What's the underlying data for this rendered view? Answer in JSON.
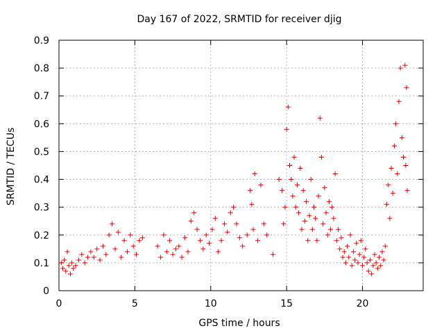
{
  "chart_data": {
    "type": "scatter",
    "title": "Day 167 of 2022, SRMTID for receiver djig",
    "xlabel": "GPS time / hours",
    "ylabel": "SRMTID / TECUs",
    "xlim": [
      0,
      24
    ],
    "ylim": [
      0,
      0.9
    ],
    "xticks": [
      0,
      5,
      10,
      15,
      20
    ],
    "yticks": [
      0,
      0.1,
      0.2,
      0.3,
      0.4,
      0.5,
      0.6,
      0.7,
      0.8,
      0.9
    ],
    "grid": true,
    "color": "#e00000",
    "marker": "+",
    "series": [
      {
        "name": "SRMTID",
        "points": [
          [
            0.15,
            0.1
          ],
          [
            0.25,
            0.08
          ],
          [
            0.35,
            0.11
          ],
          [
            0.45,
            0.07
          ],
          [
            0.55,
            0.14
          ],
          [
            0.65,
            0.09
          ],
          [
            0.75,
            0.06
          ],
          [
            0.85,
            0.1
          ],
          [
            0.95,
            0.08
          ],
          [
            1.1,
            0.09
          ],
          [
            1.3,
            0.11
          ],
          [
            1.5,
            0.13
          ],
          [
            1.7,
            0.1
          ],
          [
            1.9,
            0.12
          ],
          [
            2.1,
            0.14
          ],
          [
            2.3,
            0.12
          ],
          [
            2.5,
            0.15
          ],
          [
            2.7,
            0.11
          ],
          [
            2.9,
            0.16
          ],
          [
            3.1,
            0.13
          ],
          [
            3.3,
            0.2
          ],
          [
            3.5,
            0.24
          ],
          [
            3.7,
            0.15
          ],
          [
            3.9,
            0.21
          ],
          [
            4.1,
            0.12
          ],
          [
            4.3,
            0.18
          ],
          [
            4.5,
            0.14
          ],
          [
            4.7,
            0.2
          ],
          [
            4.9,
            0.16
          ],
          [
            5.1,
            0.13
          ],
          [
            5.3,
            0.18
          ],
          [
            5.5,
            0.19
          ],
          [
            6.5,
            0.16
          ],
          [
            6.7,
            0.12
          ],
          [
            6.9,
            0.2
          ],
          [
            7.1,
            0.14
          ],
          [
            7.3,
            0.18
          ],
          [
            7.5,
            0.13
          ],
          [
            7.7,
            0.15
          ],
          [
            7.9,
            0.16
          ],
          [
            8.1,
            0.12
          ],
          [
            8.3,
            0.19
          ],
          [
            8.5,
            0.14
          ],
          [
            8.7,
            0.25
          ],
          [
            8.9,
            0.28
          ],
          [
            9.1,
            0.22
          ],
          [
            9.3,
            0.18
          ],
          [
            9.5,
            0.15
          ],
          [
            9.7,
            0.2
          ],
          [
            9.9,
            0.17
          ],
          [
            10.1,
            0.22
          ],
          [
            10.3,
            0.26
          ],
          [
            10.5,
            0.14
          ],
          [
            10.7,
            0.18
          ],
          [
            10.9,
            0.24
          ],
          [
            11.1,
            0.21
          ],
          [
            11.3,
            0.28
          ],
          [
            11.5,
            0.3
          ],
          [
            11.7,
            0.24
          ],
          [
            11.9,
            0.19
          ],
          [
            12.1,
            0.16
          ],
          [
            12.4,
            0.2
          ],
          [
            12.6,
            0.36
          ],
          [
            12.7,
            0.31
          ],
          [
            12.8,
            0.22
          ],
          [
            12.9,
            0.42
          ],
          [
            13.1,
            0.18
          ],
          [
            13.3,
            0.38
          ],
          [
            13.5,
            0.24
          ],
          [
            13.7,
            0.2
          ],
          [
            14.1,
            0.13
          ],
          [
            14.5,
            0.4
          ],
          [
            14.7,
            0.36
          ],
          [
            14.8,
            0.24
          ],
          [
            14.9,
            0.3
          ],
          [
            15.0,
            0.58
          ],
          [
            15.1,
            0.66
          ],
          [
            15.2,
            0.45
          ],
          [
            15.3,
            0.4
          ],
          [
            15.4,
            0.34
          ],
          [
            15.5,
            0.48
          ],
          [
            15.6,
            0.3
          ],
          [
            15.7,
            0.38
          ],
          [
            15.8,
            0.28
          ],
          [
            15.9,
            0.44
          ],
          [
            16.0,
            0.22
          ],
          [
            16.1,
            0.36
          ],
          [
            16.2,
            0.25
          ],
          [
            16.3,
            0.32
          ],
          [
            16.4,
            0.18
          ],
          [
            16.5,
            0.27
          ],
          [
            16.6,
            0.4
          ],
          [
            16.7,
            0.22
          ],
          [
            16.8,
            0.3
          ],
          [
            16.9,
            0.26
          ],
          [
            17.0,
            0.18
          ],
          [
            17.1,
            0.34
          ],
          [
            17.2,
            0.62
          ],
          [
            17.3,
            0.48
          ],
          [
            17.4,
            0.24
          ],
          [
            17.5,
            0.37
          ],
          [
            17.6,
            0.28
          ],
          [
            17.7,
            0.2
          ],
          [
            17.8,
            0.32
          ],
          [
            17.9,
            0.22
          ],
          [
            18.0,
            0.3
          ],
          [
            18.1,
            0.26
          ],
          [
            18.2,
            0.42
          ],
          [
            18.3,
            0.18
          ],
          [
            18.4,
            0.22
          ],
          [
            18.5,
            0.15
          ],
          [
            18.6,
            0.19
          ],
          [
            18.7,
            0.12
          ],
          [
            18.8,
            0.14
          ],
          [
            18.9,
            0.1
          ],
          [
            19.0,
            0.16
          ],
          [
            19.1,
            0.12
          ],
          [
            19.2,
            0.2
          ],
          [
            19.3,
            0.09
          ],
          [
            19.4,
            0.14
          ],
          [
            19.5,
            0.11
          ],
          [
            19.6,
            0.17
          ],
          [
            19.7,
            0.1
          ],
          [
            19.8,
            0.13
          ],
          [
            19.9,
            0.18
          ],
          [
            20.0,
            0.09
          ],
          [
            20.1,
            0.12
          ],
          [
            20.2,
            0.15
          ],
          [
            20.3,
            0.1
          ],
          [
            20.4,
            0.07
          ],
          [
            20.5,
            0.11
          ],
          [
            20.6,
            0.06
          ],
          [
            20.7,
            0.09
          ],
          [
            20.8,
            0.13
          ],
          [
            20.9,
            0.1
          ],
          [
            21.0,
            0.08
          ],
          [
            21.1,
            0.12
          ],
          [
            21.2,
            0.09
          ],
          [
            21.3,
            0.14
          ],
          [
            21.4,
            0.11
          ],
          [
            21.5,
            0.16
          ],
          [
            21.6,
            0.31
          ],
          [
            21.7,
            0.38
          ],
          [
            21.8,
            0.26
          ],
          [
            21.9,
            0.44
          ],
          [
            22.0,
            0.35
          ],
          [
            22.1,
            0.52
          ],
          [
            22.2,
            0.6
          ],
          [
            22.3,
            0.42
          ],
          [
            22.4,
            0.68
          ],
          [
            22.5,
            0.8
          ],
          [
            22.6,
            0.55
          ],
          [
            22.7,
            0.48
          ],
          [
            22.8,
            0.81
          ],
          [
            22.85,
            0.45
          ],
          [
            22.9,
            0.73
          ],
          [
            22.95,
            0.36
          ]
        ]
      }
    ]
  }
}
